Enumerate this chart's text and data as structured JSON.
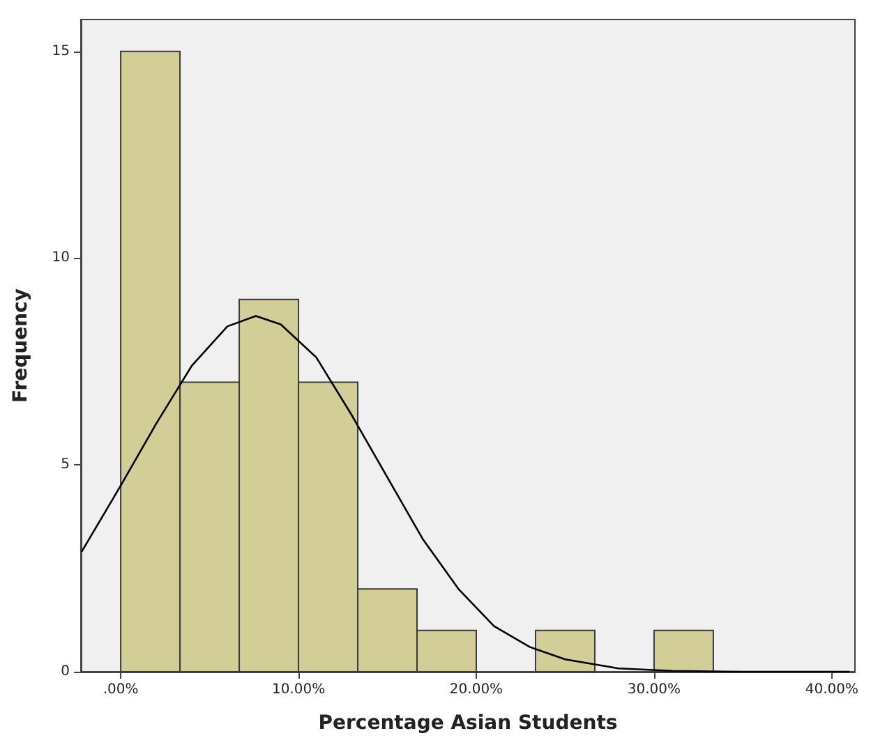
{
  "chart_data": {
    "type": "histogram",
    "xlabel": "Percentage Asian Students",
    "ylabel": "Frequency",
    "bins": [
      0,
      3.333,
      6.667,
      10,
      13.333,
      16.667,
      20,
      23.333,
      26.667,
      30,
      33.333
    ],
    "series": [
      {
        "color": "#d3ce97",
        "values": [
          15,
          7,
          9,
          7,
          2,
          1,
          0,
          1,
          0,
          1
        ]
      },
      {
        "type": "line",
        "color": "#000000",
        "x": [
          -2.2,
          0,
          2,
          4,
          6,
          7.6,
          9,
          11,
          13,
          15,
          17,
          19,
          21,
          23,
          25,
          28,
          31,
          35,
          41
        ],
        "values": [
          2.9,
          4.5,
          6.0,
          7.4,
          8.35,
          8.6,
          8.4,
          7.6,
          6.2,
          4.7,
          3.2,
          2.0,
          1.1,
          0.6,
          0.3,
          0.08,
          0.02,
          0,
          0
        ]
      }
    ],
    "marker": "none",
    "line_style": "solid",
    "grid": false,
    "xlim": [
      -2.24,
      41.3
    ],
    "xticks": [
      {
        "value": 0,
        "label": ".00%"
      },
      {
        "value": 10,
        "label": "10.00%"
      },
      {
        "value": 20,
        "label": "20.00%"
      },
      {
        "value": 30,
        "label": "30.00%"
      },
      {
        "value": 40,
        "label": "40.00%"
      }
    ],
    "ylim": [
      0,
      15.77
    ],
    "yticks": [
      0,
      5,
      10,
      15
    ]
  }
}
